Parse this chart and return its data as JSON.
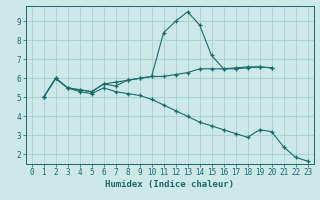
{
  "xlabel": "Humidex (Indice chaleur)",
  "xlim": [
    -0.5,
    23.5
  ],
  "ylim": [
    1.5,
    9.8
  ],
  "xticks": [
    0,
    1,
    2,
    3,
    4,
    5,
    6,
    7,
    8,
    9,
    10,
    11,
    12,
    13,
    14,
    15,
    16,
    17,
    18,
    19,
    20,
    21,
    22,
    23
  ],
  "yticks": [
    2,
    3,
    4,
    5,
    6,
    7,
    8,
    9
  ],
  "bg_color": "#cce8e8",
  "grid_color": "#aad0d0",
  "line_color": "#1a6b6b",
  "lines": [
    {
      "x": [
        1,
        2,
        3,
        4,
        5,
        6,
        7,
        8,
        9,
        10,
        11,
        12,
        13,
        14,
        15,
        16,
        17,
        18,
        19,
        20
      ],
      "y": [
        5.0,
        6.0,
        5.5,
        5.4,
        5.3,
        5.7,
        5.8,
        5.9,
        6.0,
        6.1,
        8.4,
        9.0,
        9.5,
        8.8,
        7.2,
        6.5,
        6.5,
        6.55,
        6.6,
        6.55
      ]
    },
    {
      "x": [
        1,
        2,
        3,
        4,
        5,
        6,
        7,
        8,
        9,
        10,
        11,
        12,
        13,
        14,
        15,
        16,
        17,
        18,
        19,
        20
      ],
      "y": [
        5.0,
        6.0,
        5.5,
        5.4,
        5.3,
        5.7,
        5.6,
        5.9,
        6.0,
        6.1,
        6.1,
        6.2,
        6.3,
        6.5,
        6.5,
        6.5,
        6.55,
        6.6,
        6.6,
        6.55
      ]
    },
    {
      "x": [
        1,
        2,
        3,
        4,
        5,
        6,
        7,
        8,
        9,
        10,
        11,
        12,
        13,
        14,
        15,
        16,
        17,
        18,
        19,
        20,
        21,
        22,
        23
      ],
      "y": [
        5.0,
        6.0,
        5.5,
        5.3,
        5.2,
        5.5,
        5.3,
        5.2,
        5.1,
        4.9,
        4.6,
        4.3,
        4.0,
        3.7,
        3.5,
        3.3,
        3.1,
        2.9,
        3.3,
        3.2,
        2.4,
        1.85,
        1.65
      ]
    }
  ]
}
